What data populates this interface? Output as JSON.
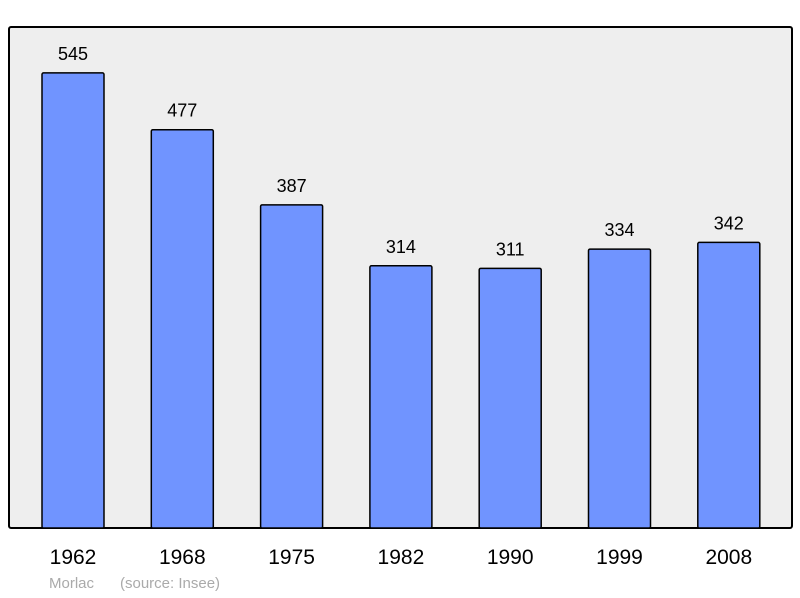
{
  "chart_data": {
    "type": "bar",
    "title": "",
    "xlabel": "",
    "ylabel": "",
    "categories": [
      "1962",
      "1968",
      "1975",
      "1982",
      "1990",
      "1999",
      "2008"
    ],
    "values": [
      545,
      477,
      387,
      314,
      311,
      334,
      342
    ],
    "data_labels": [
      "545",
      "477",
      "387",
      "314",
      "311",
      "334",
      "342"
    ],
    "ylim": [
      0,
      600
    ],
    "grid": false,
    "colors": {
      "bar": "#7094ff",
      "plot_background": "#eeeeee",
      "border": "#000000"
    }
  },
  "caption": {
    "name": "Morlac",
    "source": "(source: Insee)"
  }
}
